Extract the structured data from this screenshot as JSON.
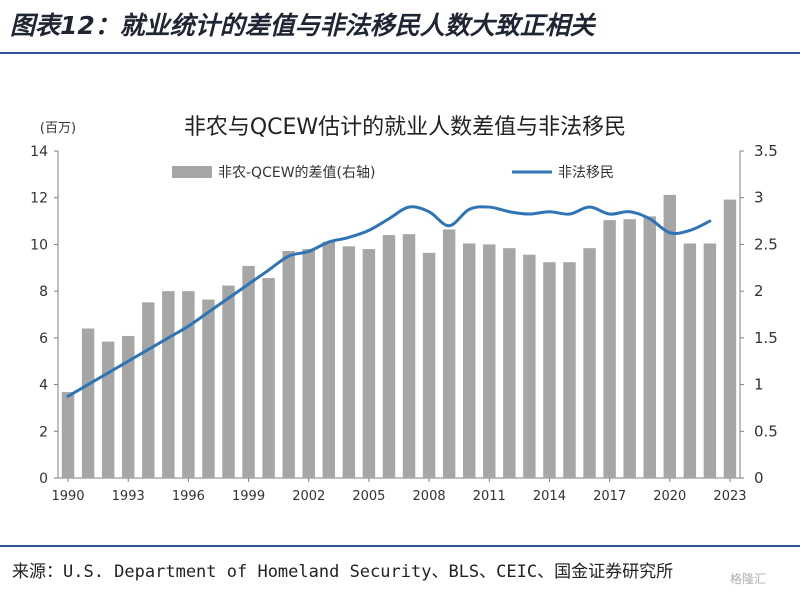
{
  "header": {
    "title": "图表12：就业统计的差值与非法移民人数大致正相关"
  },
  "footer": {
    "source": "来源：U.S. Department of Homeland Security、BLS、CEIC、国金证券研究所",
    "watermark": "格隆汇"
  },
  "colors": {
    "bar": "#a6a6a6",
    "line": "#2e75b6",
    "rule": "#2f5597"
  },
  "chart_data": {
    "type": "bar",
    "title": "非农与QCEW估计的就业人数差值与非法移民",
    "unit_label": "(百万)",
    "x": [
      1990,
      1991,
      1992,
      1993,
      1994,
      1995,
      1996,
      1997,
      1998,
      1999,
      2000,
      2001,
      2002,
      2003,
      2004,
      2005,
      2006,
      2007,
      2008,
      2009,
      2010,
      2011,
      2012,
      2013,
      2014,
      2015,
      2016,
      2017,
      2018,
      2019,
      2020,
      2021,
      2022,
      2023
    ],
    "x_tick_labels": [
      "1990",
      "1993",
      "1996",
      "1999",
      "2002",
      "2005",
      "2008",
      "2011",
      "2014",
      "2017",
      "2020",
      "2023"
    ],
    "y_left_ticks": [
      "0",
      "2",
      "4",
      "6",
      "8",
      "10",
      "12",
      "14"
    ],
    "y_left_range": [
      0,
      14
    ],
    "y_right_ticks": [
      "0",
      "0.5",
      "1",
      "1.5",
      "2",
      "2.5",
      "3",
      "3.5"
    ],
    "y_right_range": [
      0,
      3.5
    ],
    "legend_placement": "top",
    "grid": false,
    "series": [
      {
        "name": "非农-QCEW的差值(右轴)",
        "kind": "bar",
        "axis": "right",
        "values": [
          0.92,
          1.6,
          1.46,
          1.52,
          1.88,
          2.0,
          2.0,
          1.91,
          2.06,
          2.27,
          2.14,
          2.43,
          2.45,
          2.53,
          2.48,
          2.45,
          2.6,
          2.61,
          2.41,
          2.66,
          2.51,
          2.5,
          2.46,
          2.39,
          2.31,
          2.31,
          2.46,
          2.76,
          2.77,
          2.8,
          3.03,
          2.51,
          2.51,
          2.98
        ]
      },
      {
        "name": "非法移民",
        "kind": "line",
        "axis": "left",
        "x": [
          1990,
          1991,
          1992,
          1993,
          1994,
          1995,
          1996,
          1997,
          1998,
          1999,
          2000,
          2001,
          2002,
          2003,
          2004,
          2005,
          2006,
          2007,
          2008,
          2009,
          2010,
          2011,
          2012,
          2013,
          2014,
          2015,
          2016,
          2017,
          2018,
          2019,
          2020,
          2021,
          2022
        ],
        "values": [
          3.5,
          4.0,
          4.5,
          5.0,
          5.5,
          6.0,
          6.5,
          7.1,
          7.7,
          8.3,
          8.9,
          9.5,
          9.7,
          10.1,
          10.3,
          10.6,
          11.1,
          11.6,
          11.4,
          10.8,
          11.5,
          11.6,
          11.4,
          11.3,
          11.4,
          11.3,
          11.6,
          11.3,
          11.4,
          11.1,
          10.5,
          10.6,
          11.0
        ]
      }
    ]
  }
}
